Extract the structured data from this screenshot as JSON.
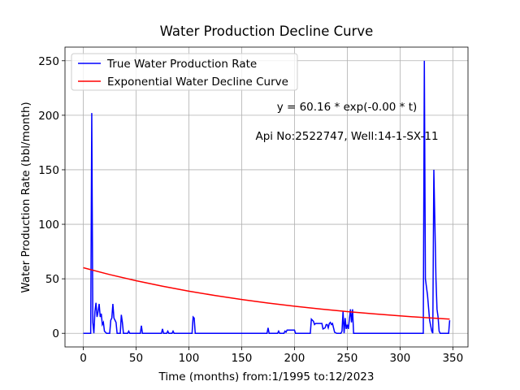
{
  "chart_data": {
    "type": "line",
    "title": "Water Production Decline Curve",
    "x_label": "Time (months) from:1/1995 to:12/2023",
    "y_label": "Water Production Rate (bbl/month)",
    "annotations": [
      "y = 60.16 * exp(-0.00 * t)",
      "Api No:2522747, Well:14-1-SX-11"
    ],
    "xlim": [
      -17.35,
      364.35
    ],
    "ylim": [
      -12.5,
      262.5
    ],
    "xticks": [
      0,
      50,
      100,
      150,
      200,
      250,
      300,
      350
    ],
    "yticks": [
      0,
      50,
      100,
      150,
      200,
      250
    ],
    "grid": true,
    "legend": "upper left",
    "series": [
      {
        "name": "True Water Production Rate",
        "color": "#0000ff",
        "x": [
          0,
          7,
          8,
          9,
          10,
          11,
          12,
          13,
          14,
          15,
          16,
          17,
          18,
          19,
          20,
          22,
          25,
          26,
          27,
          28,
          29,
          30,
          31,
          32,
          35,
          36,
          37,
          38,
          42,
          43,
          44,
          54,
          55,
          56,
          74,
          75,
          76,
          79,
          80,
          81,
          84,
          85,
          86,
          103,
          104,
          105,
          106,
          174,
          175,
          176,
          184,
          185,
          186,
          190,
          191,
          192,
          193,
          200,
          201,
          215,
          216,
          217,
          218,
          219,
          220,
          226,
          227,
          229,
          230,
          231,
          232,
          233,
          234,
          235,
          236,
          237,
          238,
          240,
          244,
          245,
          246,
          247,
          248,
          249,
          250,
          251,
          252,
          253,
          254,
          255,
          256,
          322,
          323,
          324,
          326,
          328,
          330,
          331,
          332,
          334,
          335,
          336,
          337,
          338,
          346,
          347
        ],
        "values": [
          0,
          0,
          202,
          10,
          0,
          20,
          28,
          15,
          20,
          27,
          15,
          18,
          8,
          10,
          2,
          0,
          0,
          12,
          14,
          27,
          14,
          12,
          10,
          0,
          0,
          17,
          10,
          0,
          0,
          2,
          0,
          0,
          7,
          0,
          0,
          4,
          0,
          0,
          2,
          0,
          0,
          2,
          0,
          0,
          15,
          14,
          0,
          0,
          5,
          0,
          0,
          2,
          0,
          0,
          2,
          1,
          3,
          3,
          0,
          0,
          13,
          12,
          11,
          8,
          9,
          9,
          4,
          5,
          8,
          8,
          5,
          9,
          10,
          8,
          9,
          5,
          1,
          0,
          0,
          2,
          20,
          0,
          14,
          4,
          8,
          4,
          13,
          22,
          10,
          22,
          0,
          0,
          250,
          50,
          35,
          12,
          2,
          0,
          150,
          50,
          22,
          15,
          2,
          0,
          0,
          12
        ]
      },
      {
        "name": "Exponential Water Decline Curve",
        "color": "#ff0000",
        "x": [
          0,
          25,
          50,
          75,
          100,
          125,
          150,
          175,
          200,
          225,
          250,
          275,
          300,
          325,
          347
        ],
        "values": [
          60.16,
          53.87,
          48.23,
          43.18,
          38.66,
          34.62,
          31.0,
          27.76,
          24.85,
          22.25,
          19.92,
          17.84,
          15.97,
          14.3,
          12.98
        ]
      }
    ]
  }
}
